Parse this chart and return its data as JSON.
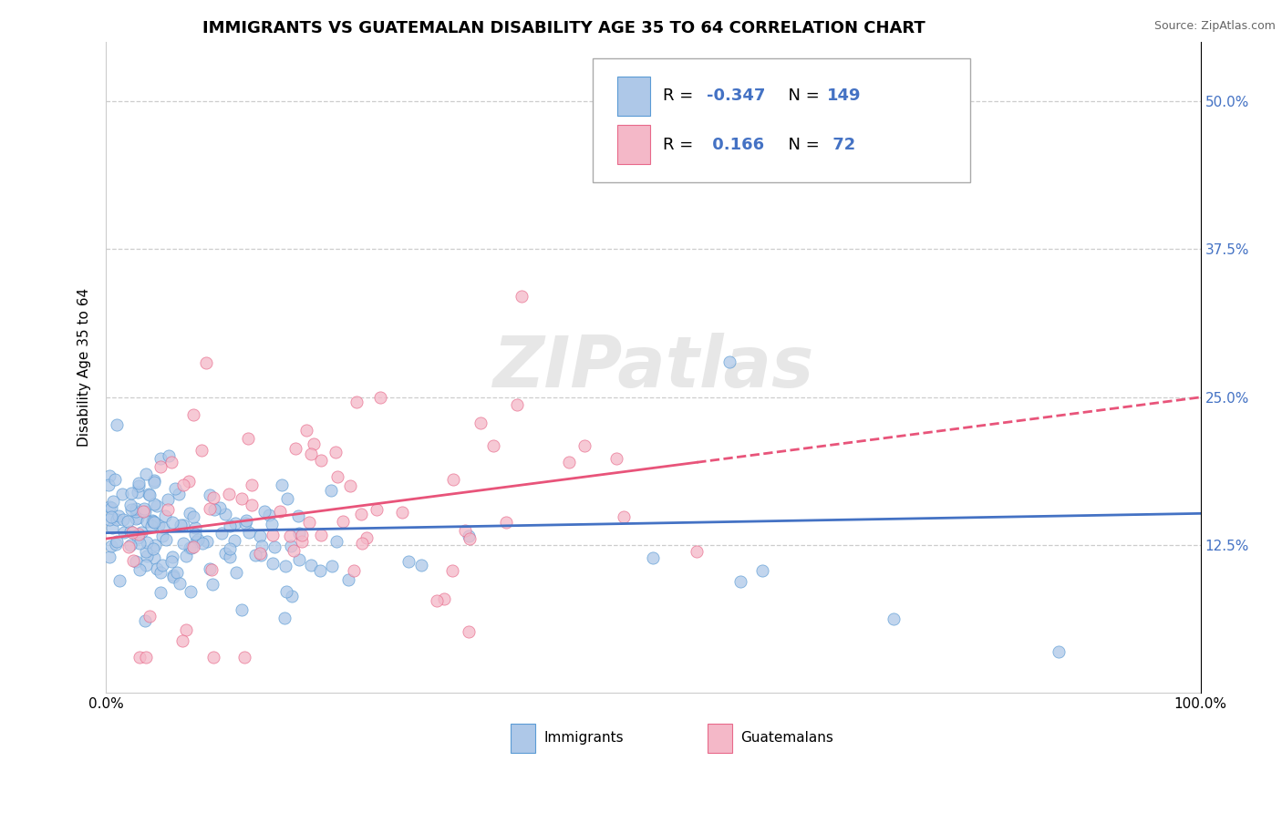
{
  "title": "IMMIGRANTS VS GUATEMALAN DISABILITY AGE 35 TO 64 CORRELATION CHART",
  "source": "Source: ZipAtlas.com",
  "ylabel_label": "Disability Age 35 to 64",
  "r_immigrants": -0.347,
  "n_immigrants": 149,
  "r_guatemalans": 0.166,
  "n_guatemalans": 72,
  "blue_fill": "#aec8e8",
  "blue_edge": "#5b9bd5",
  "pink_fill": "#f4b8c8",
  "pink_edge": "#e8698a",
  "blue_line": "#4472c4",
  "pink_line": "#e8547a",
  "background_color": "#ffffff",
  "grid_color": "#c8c8c8",
  "ytick_vals": [
    0.125,
    0.25,
    0.375,
    0.5
  ],
  "ytick_labels": [
    "12.5%",
    "25.0%",
    "37.5%",
    "50.0%"
  ],
  "xlim": [
    0.0,
    1.0
  ],
  "ylim": [
    0.0,
    0.55
  ],
  "title_fontsize": 13,
  "axis_fontsize": 11,
  "legend_fontsize": 13,
  "watermark_text": "ZIPatlas"
}
